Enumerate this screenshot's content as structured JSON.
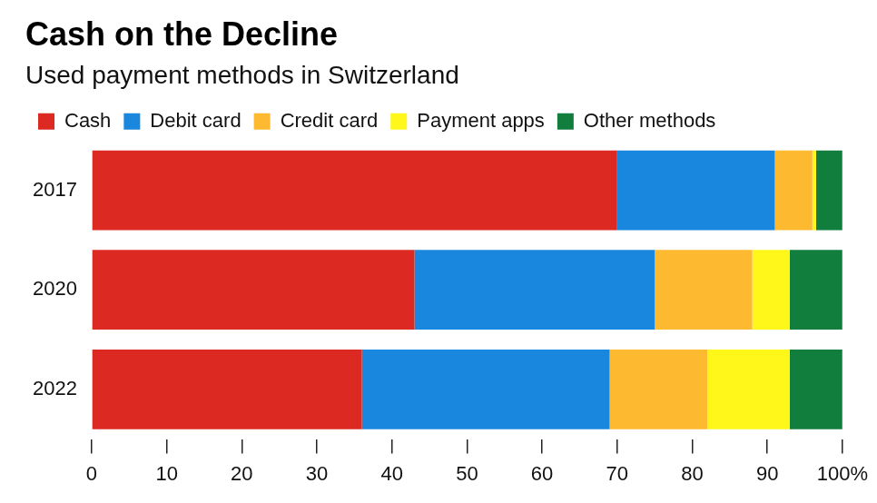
{
  "chart_data": {
    "type": "bar",
    "title": "Cash on the Decline",
    "subtitle": "Used payment methods in Switzerland",
    "orientation": "horizontal",
    "stacked": true,
    "grid": false,
    "legend": "top-left",
    "categories": [
      "2017",
      "2020",
      "2022"
    ],
    "series": [
      {
        "name": "Cash",
        "color": "#dc2a22",
        "values": [
          70,
          43,
          36
        ]
      },
      {
        "name": "Debit card",
        "color": "#1a87de",
        "values": [
          21,
          32,
          33
        ]
      },
      {
        "name": "Credit card",
        "color": "#fdb92f",
        "values": [
          5,
          13,
          13
        ]
      },
      {
        "name": "Payment apps",
        "color": "#fff71a",
        "values": [
          0.5,
          5,
          11
        ]
      },
      {
        "name": "Other methods",
        "color": "#117e3e",
        "values": [
          3.5,
          7,
          7
        ]
      }
    ],
    "xlim": [
      0,
      100
    ],
    "xticks": [
      0,
      10,
      20,
      30,
      40,
      50,
      60,
      70,
      80,
      90,
      {
        "value": 100,
        "label": "100%"
      }
    ]
  }
}
